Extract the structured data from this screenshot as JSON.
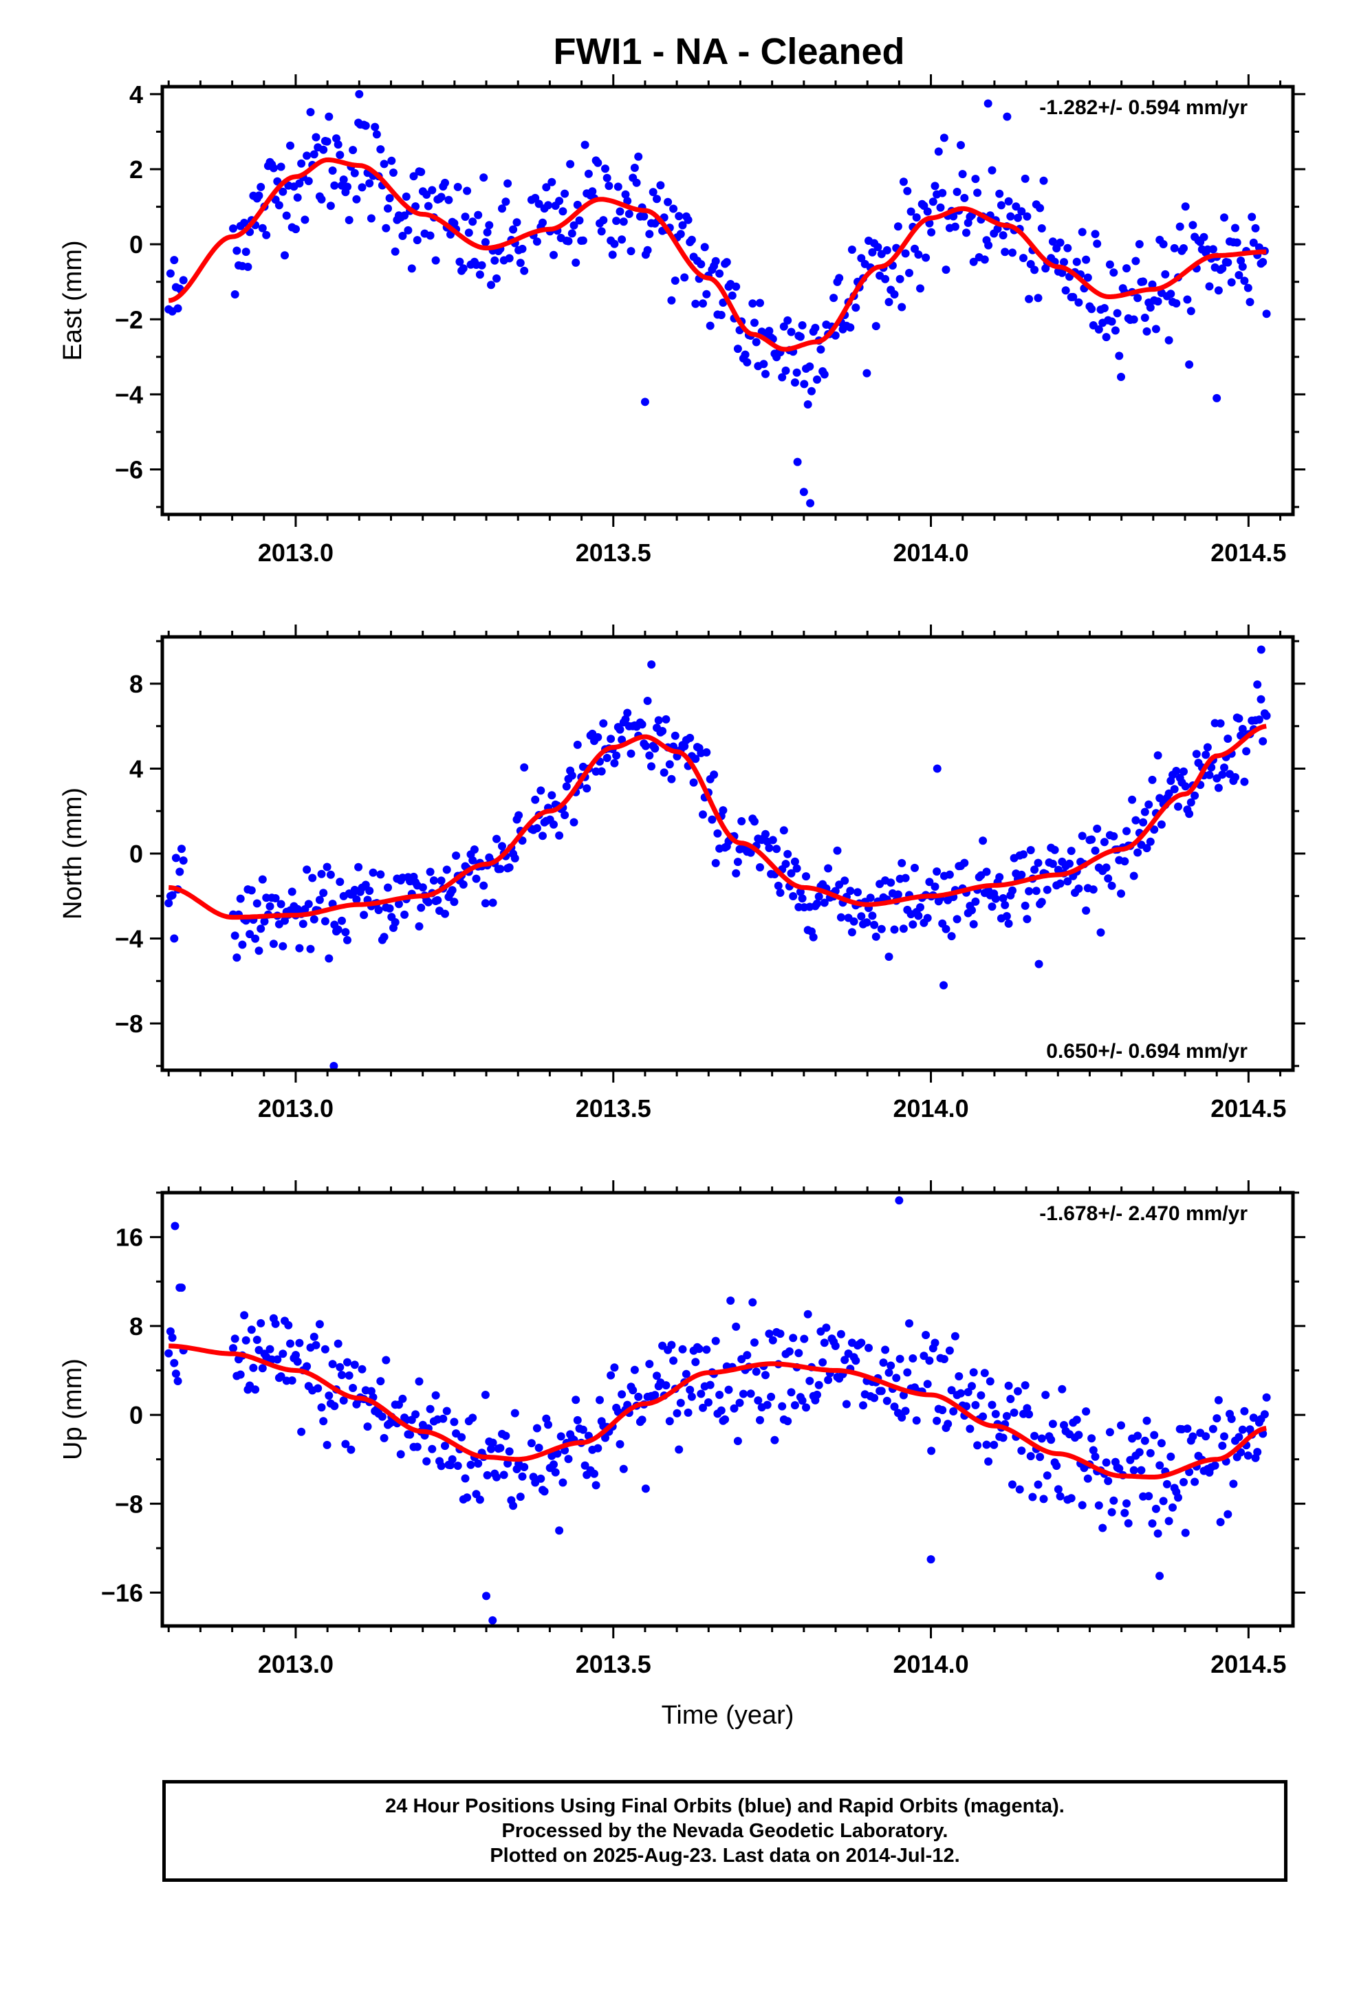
{
  "title": "FWI1  - NA - Cleaned",
  "footer": {
    "line1": "24 Hour Positions Using Final Orbits (blue) and Rapid Orbits (magenta).",
    "line2": "Processed by the Nevada Geodetic Laboratory.",
    "line3": "Plotted on 2025-Aug-23. Last data on 2014-Jul-12."
  },
  "colors": {
    "points": "#0000ff",
    "fit": "#ff0000",
    "axes": "#000000"
  },
  "chart_data": [
    {
      "type": "scatter",
      "panel": "east",
      "ylabel": "East (mm)",
      "xlabel": "",
      "rate_label": "-1.282+/- 0.594 mm/yr",
      "rate_position": "top-right",
      "xlim": [
        2012.79,
        2014.57
      ],
      "ylim": [
        -7.2,
        4.2
      ],
      "xticks": [
        "2013.0",
        "2013.5",
        "2014.0",
        "2014.5"
      ],
      "yticks": [
        "-6",
        "-4",
        "-2",
        "0",
        "2",
        "4"
      ],
      "fit_knots": [
        [
          2012.8,
          -1.5
        ],
        [
          2012.9,
          0.2
        ],
        [
          2013.0,
          1.8
        ],
        [
          2013.05,
          2.25
        ],
        [
          2013.1,
          2.1
        ],
        [
          2013.2,
          0.8
        ],
        [
          2013.3,
          -0.1
        ],
        [
          2013.4,
          0.4
        ],
        [
          2013.48,
          1.2
        ],
        [
          2013.55,
          0.9
        ],
        [
          2013.65,
          -0.9
        ],
        [
          2013.72,
          -2.4
        ],
        [
          2013.77,
          -2.8
        ],
        [
          2013.82,
          -2.6
        ],
        [
          2013.92,
          -0.6
        ],
        [
          2014.0,
          0.7
        ],
        [
          2014.05,
          0.95
        ],
        [
          2014.12,
          0.5
        ],
        [
          2014.2,
          -0.6
        ],
        [
          2014.28,
          -1.4
        ],
        [
          2014.35,
          -1.2
        ],
        [
          2014.45,
          -0.3
        ],
        [
          2014.53,
          -0.2
        ]
      ],
      "noise": 1.0,
      "outliers": [
        [
          2013.81,
          -6.9
        ],
        [
          2013.8,
          -6.6
        ],
        [
          2013.79,
          -5.8
        ],
        [
          2013.55,
          -4.2
        ],
        [
          2014.45,
          -4.1
        ],
        [
          2013.1,
          4.0
        ],
        [
          2014.12,
          3.4
        ],
        [
          2014.09,
          3.75
        ]
      ]
    },
    {
      "type": "scatter",
      "panel": "north",
      "ylabel": "North (mm)",
      "xlabel": "",
      "rate_label": "0.650+/- 0.694 mm/yr",
      "rate_position": "bottom-right",
      "xlim": [
        2012.79,
        2014.57
      ],
      "ylim": [
        -10.2,
        10.2
      ],
      "xticks": [
        "2013.0",
        "2013.5",
        "2014.0",
        "2014.5"
      ],
      "yticks": [
        "-8",
        "-4",
        "0",
        "4",
        "8"
      ],
      "fit_knots": [
        [
          2012.8,
          -1.6
        ],
        [
          2012.9,
          -3.0
        ],
        [
          2013.0,
          -2.9
        ],
        [
          2013.1,
          -2.4
        ],
        [
          2013.2,
          -2.0
        ],
        [
          2013.3,
          -0.5
        ],
        [
          2013.4,
          2.0
        ],
        [
          2013.5,
          5.0
        ],
        [
          2013.55,
          5.5
        ],
        [
          2013.6,
          4.8
        ],
        [
          2013.7,
          0.5
        ],
        [
          2013.8,
          -1.6
        ],
        [
          2013.9,
          -2.4
        ],
        [
          2014.0,
          -2.0
        ],
        [
          2014.1,
          -1.5
        ],
        [
          2014.2,
          -1.0
        ],
        [
          2014.3,
          0.2
        ],
        [
          2014.4,
          2.8
        ],
        [
          2014.45,
          4.6
        ],
        [
          2014.53,
          6.0
        ]
      ],
      "noise": 1.2,
      "outliers": [
        [
          2013.06,
          -10.0
        ],
        [
          2014.02,
          -6.2
        ],
        [
          2014.01,
          4.0
        ],
        [
          2013.56,
          8.9
        ],
        [
          2014.52,
          9.6
        ],
        [
          2014.17,
          -5.2
        ]
      ]
    },
    {
      "type": "scatter",
      "panel": "up",
      "ylabel": "Up (mm)",
      "xlabel": "Time (year)",
      "rate_label": "-1.678+/- 2.470 mm/yr",
      "rate_position": "top-right",
      "xlim": [
        2012.79,
        2014.57
      ],
      "ylim": [
        -19,
        20
      ],
      "xticks": [
        "2013.0",
        "2013.5",
        "2014.0",
        "2014.5"
      ],
      "yticks": [
        "-16",
        "-8",
        "0",
        "8",
        "16"
      ],
      "fit_knots": [
        [
          2012.8,
          6.2
        ],
        [
          2012.9,
          5.5
        ],
        [
          2013.0,
          4.0
        ],
        [
          2013.1,
          1.5
        ],
        [
          2013.2,
          -1.5
        ],
        [
          2013.3,
          -3.8
        ],
        [
          2013.35,
          -4.0
        ],
        [
          2013.45,
          -2.5
        ],
        [
          2013.55,
          1.0
        ],
        [
          2013.65,
          3.8
        ],
        [
          2013.75,
          4.6
        ],
        [
          2013.85,
          4.0
        ],
        [
          2014.0,
          1.8
        ],
        [
          2014.1,
          -1.0
        ],
        [
          2014.2,
          -3.5
        ],
        [
          2014.3,
          -5.5
        ],
        [
          2014.35,
          -5.6
        ],
        [
          2014.45,
          -4.0
        ],
        [
          2014.53,
          -1.2
        ]
      ],
      "noise": 3.5,
      "outliers": [
        [
          2013.95,
          19.3
        ],
        [
          2012.81,
          17.0
        ],
        [
          2013.31,
          -18.5
        ],
        [
          2013.3,
          -16.3
        ],
        [
          2014.36,
          -14.5
        ],
        [
          2014.0,
          -13.0
        ]
      ]
    }
  ]
}
